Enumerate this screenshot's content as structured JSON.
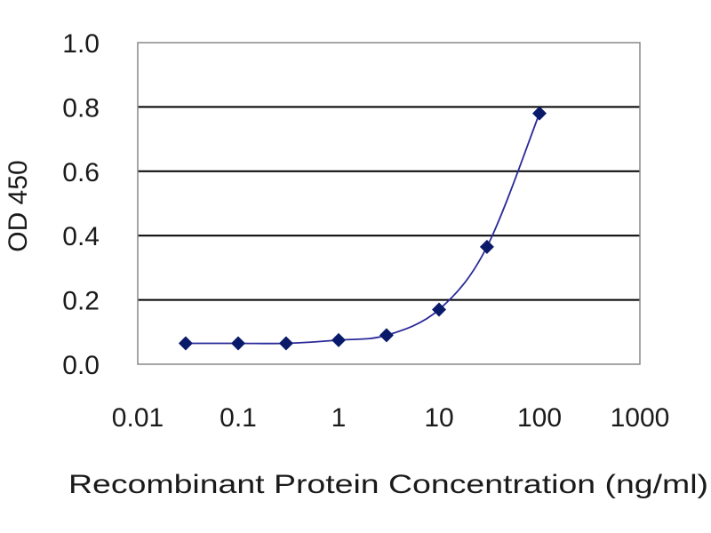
{
  "chart_data": {
    "type": "scatter",
    "title": "",
    "xlabel": "Recombinant Protein Concentration (ng/ml)",
    "ylabel": "OD 450",
    "x_scale": "log",
    "xlim": [
      0.01,
      1000
    ],
    "ylim": [
      0.0,
      1.0
    ],
    "x_tick_labels": [
      "0.01",
      "0.1",
      "1",
      "10",
      "100",
      "1000"
    ],
    "x_tick_values": [
      0.01,
      0.1,
      1,
      10,
      100,
      1000
    ],
    "y_tick_labels": [
      "0.0",
      "0.2",
      "0.4",
      "0.6",
      "0.8",
      "1.0"
    ],
    "y_tick_values": [
      0.0,
      0.2,
      0.4,
      0.6,
      0.8,
      1.0
    ],
    "grid": "horizontal",
    "legend": "none",
    "line_color": "#2a2a9a",
    "marker_color": "#0a1a6a",
    "marker": "diamond",
    "series": [
      {
        "x": [
          0.03,
          0.1,
          0.3,
          1,
          3,
          10,
          30,
          100
        ],
        "y": [
          0.065,
          0.065,
          0.065,
          0.075,
          0.09,
          0.17,
          0.365,
          0.78
        ]
      }
    ]
  }
}
